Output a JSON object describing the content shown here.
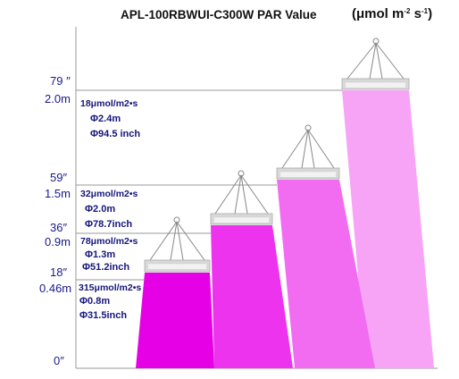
{
  "title": "APL-100RBWUI-C300W   PAR Value",
  "unit": {
    "base": "(μmol m",
    "exp1": "-2",
    "mid": " s",
    "exp2": "-1",
    "end": ")"
  },
  "colors": {
    "axis_line": "#999999",
    "label_blue": "#1a1a8c",
    "beam_1": "#e600e6",
    "beam_2": "#ee33ee",
    "beam_3": "#f26cf2",
    "beam_4": "#f7a4f7"
  },
  "levels": [
    {
      "inches": "79 ″",
      "meters": "2.0m",
      "par": "18μmol/m2•s",
      "coverage_m": "Φ2.4m",
      "coverage_in": "Φ94.5 inch"
    },
    {
      "inches": "59″",
      "meters": "1.5m",
      "par": "32μmol/m2•s",
      "coverage_m": "Φ2.0m",
      "coverage_in": "Φ78.7inch"
    },
    {
      "inches": "36″",
      "meters": "0.9m",
      "par": "78μmol/m2•s",
      "coverage_m": "Φ1.3m",
      "coverage_in": "Φ51.2inch"
    },
    {
      "inches": "18″",
      "meters": "0.46m",
      "par": "315μmol/m2•s",
      "coverage_m": "Φ0.8m",
      "coverage_in": "Φ31.5inch"
    }
  ],
  "ground_label": "0″",
  "fixture_icon": "led-grow-light-fixture"
}
